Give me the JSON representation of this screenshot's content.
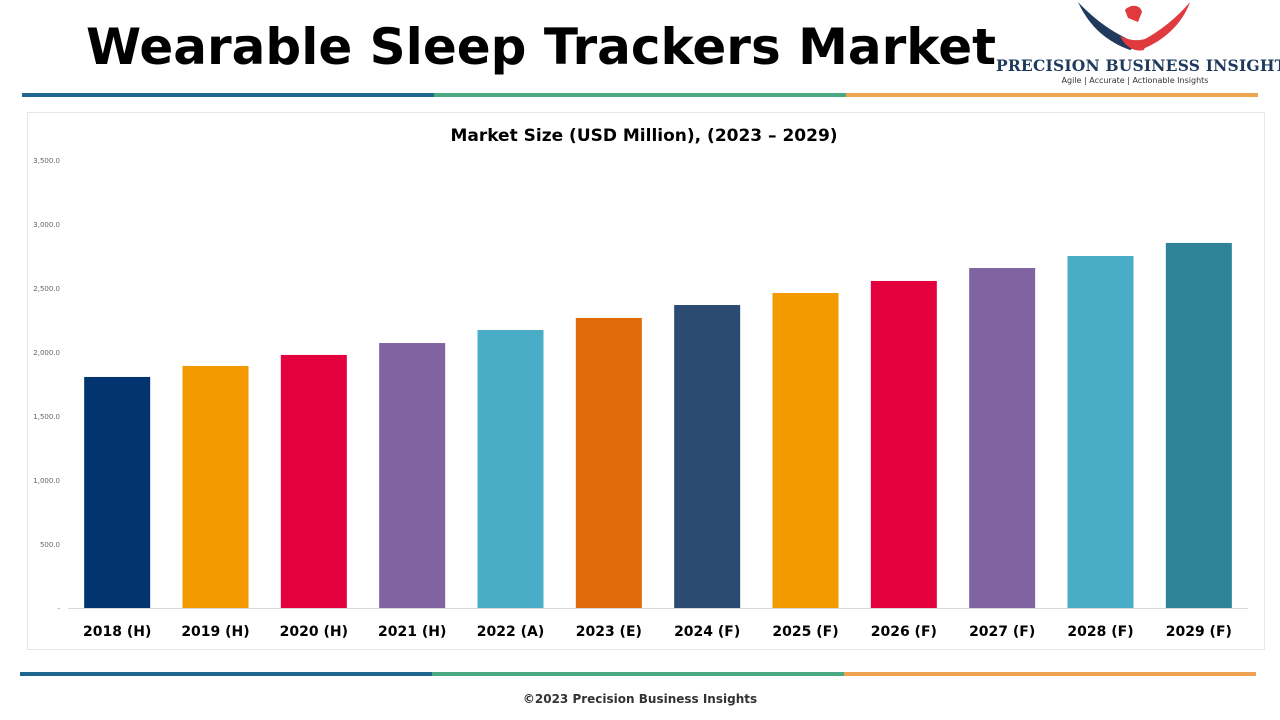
{
  "header": {
    "title": "Wearable Sleep Trackers Market"
  },
  "logo": {
    "name": "PRECISION BUSINESS INSIGHTS",
    "tagline": "Agile | Accurate | Actionable Insights"
  },
  "colors": {
    "stripe_blue": "#1f6592",
    "stripe_green": "#4aa982",
    "stripe_orange": "#eea353"
  },
  "chart_data": {
    "type": "bar",
    "title": "Market Size (USD Million), (2023 – 2029)",
    "xlabel": "",
    "ylabel": "",
    "ylim": [
      0,
      3500
    ],
    "yticks": [
      0,
      500,
      1000,
      1500,
      2000,
      2500,
      3000,
      3500
    ],
    "ytick_labels": [
      "-",
      "500.0",
      "1,000.0",
      "1,500.0",
      "2,000.0",
      "2,500.0",
      "3,000.0",
      "3,500.0"
    ],
    "categories": [
      "2018 (H)",
      "2019 (H)",
      "2020 (H)",
      "2021 (H)",
      "2022 (A)",
      "2023 (E)",
      "2024 (F)",
      "2025 (F)",
      "2026 (F)",
      "2027 (F)",
      "2028 (F)",
      "2029 (F)"
    ],
    "values": [
      1805,
      1891,
      1977,
      2070,
      2172,
      2266,
      2367,
      2461,
      2555,
      2656,
      2750,
      2852
    ],
    "bar_colors": [
      "#02356f",
      "#f29a00",
      "#e3003d",
      "#7f64a1",
      "#4aadc7",
      "#e06b08",
      "#2c4b73",
      "#f29a00",
      "#e3003d",
      "#7f64a1",
      "#4aadc7",
      "#2f8499"
    ],
    "grid": false,
    "legend": "none"
  },
  "footer": {
    "copyright": "©2023 Precision Business Insights"
  }
}
